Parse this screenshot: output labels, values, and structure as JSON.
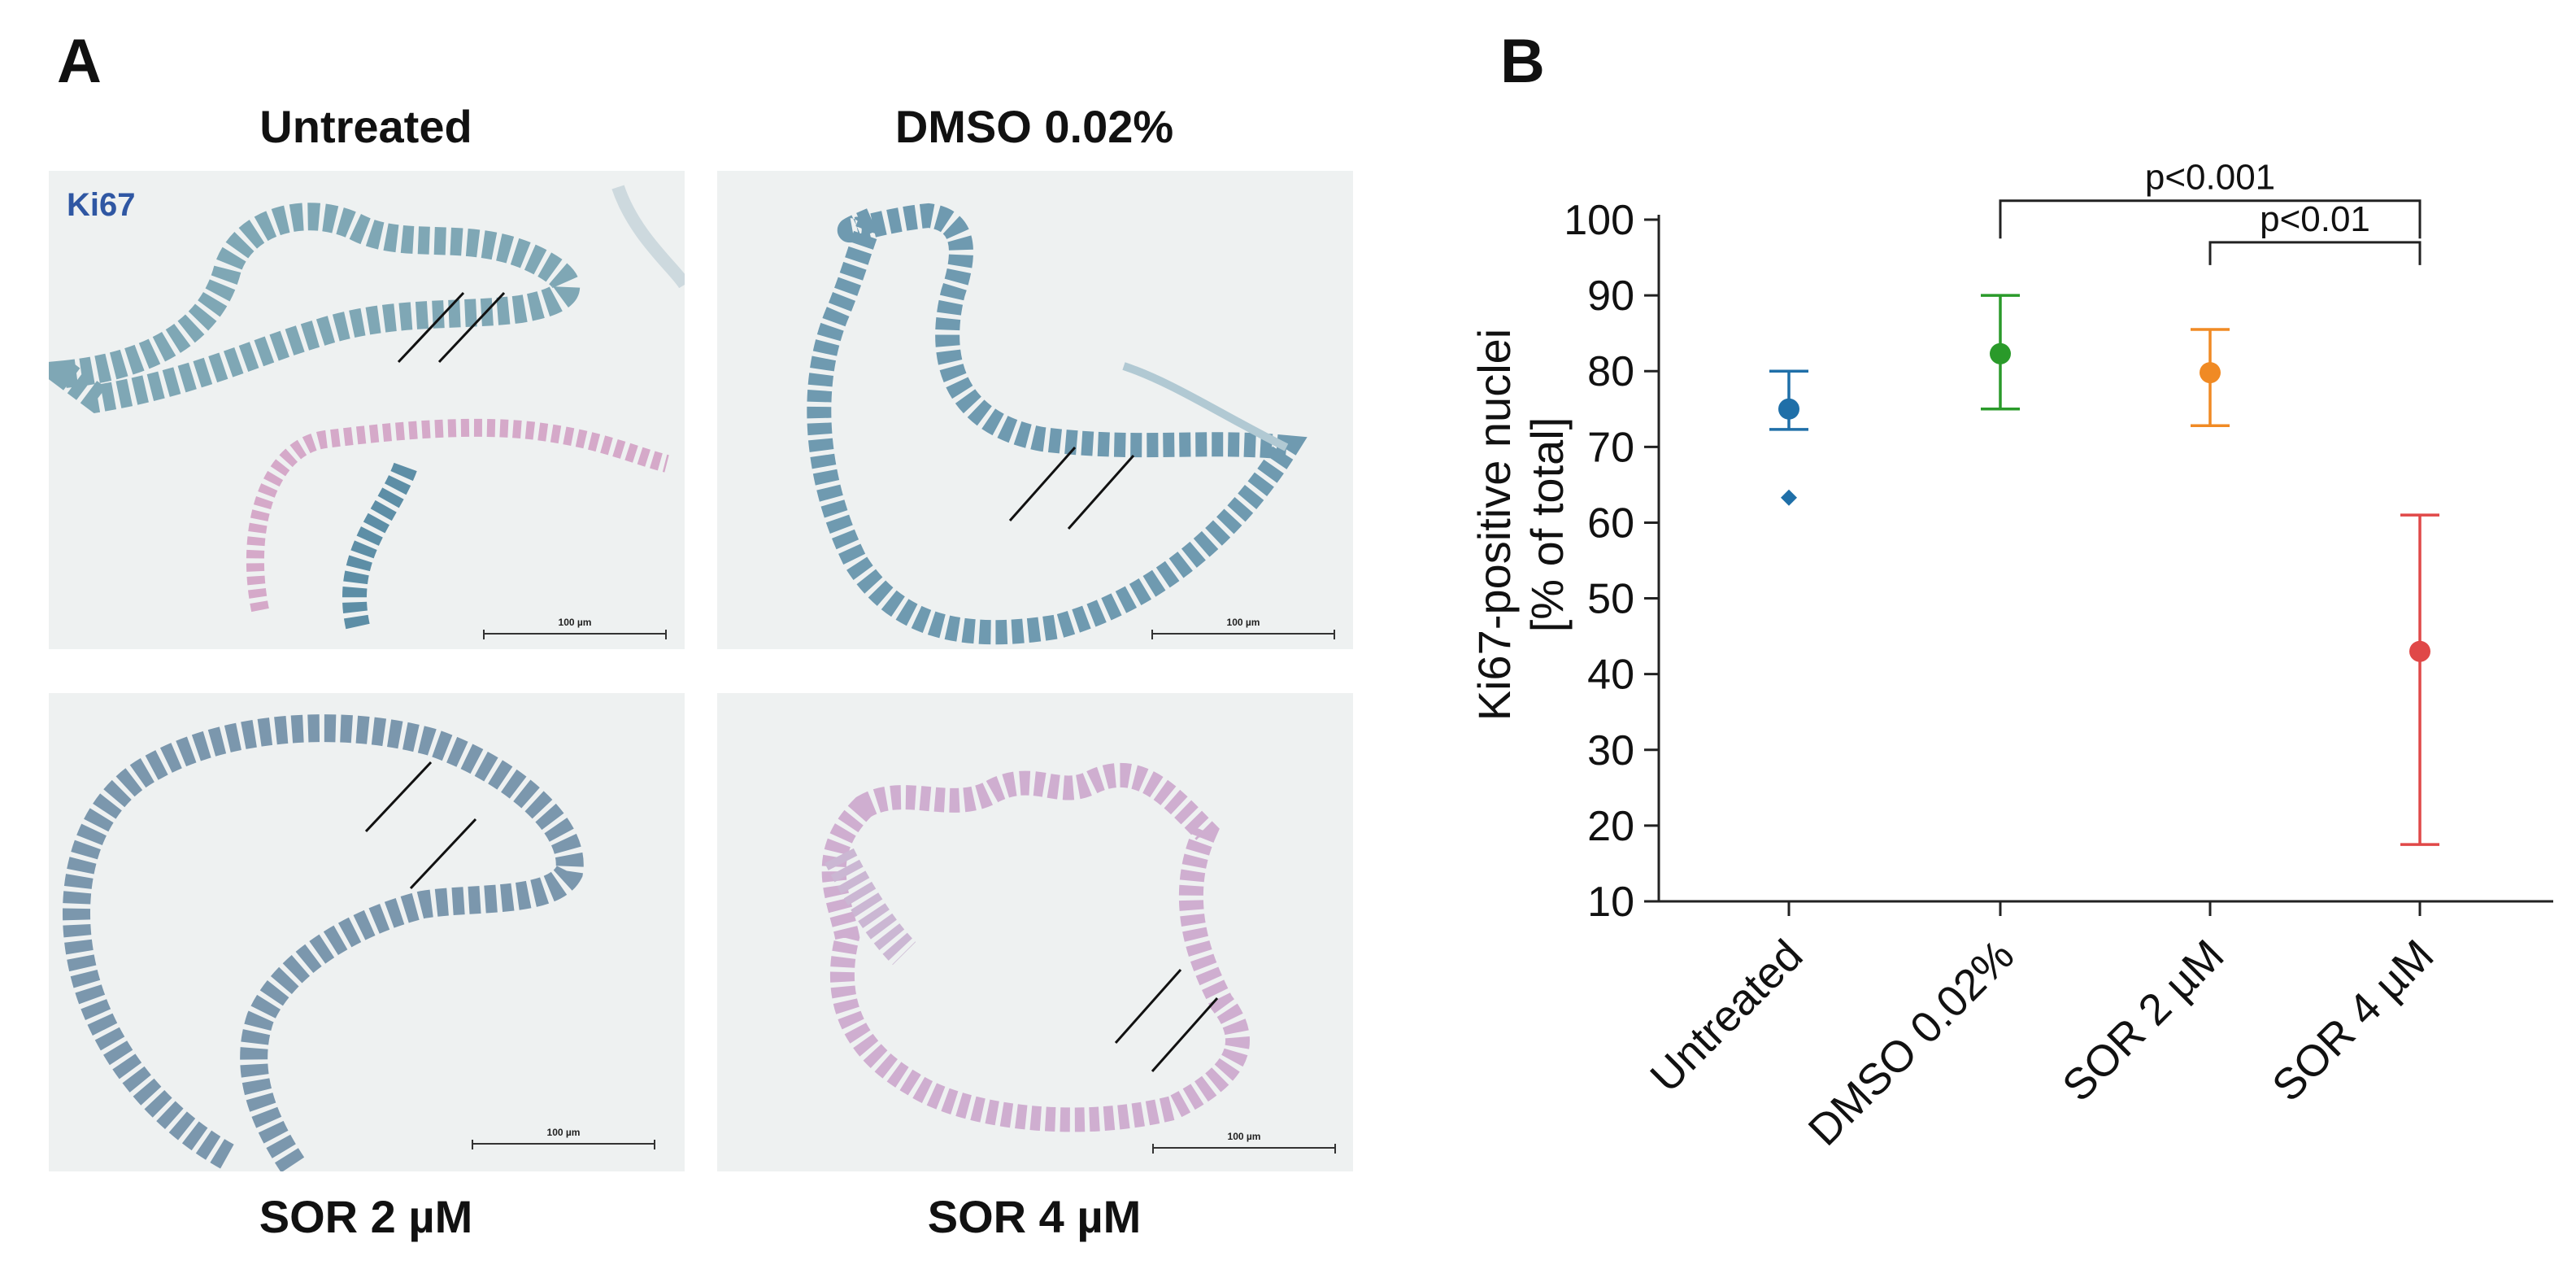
{
  "panel_a": {
    "letter": "A",
    "stain_label": "Ki67",
    "stain_color": "#2f57a3",
    "scale_label": "100 µm",
    "images": [
      {
        "caption": "Untreated"
      },
      {
        "caption": "DMSO 0.02%"
      },
      {
        "caption": "SOR 2 µM"
      },
      {
        "caption": "SOR 4 µM"
      }
    ]
  },
  "panel_b": {
    "letter": "B"
  },
  "chart_data": {
    "type": "scatter",
    "categories": [
      "Untreated",
      "DMSO 0.02%",
      "SOR 2 µM",
      "SOR 4 µM"
    ],
    "ylabel_line1": "Ki67-positive nuclei",
    "ylabel_line2": "[% of total]",
    "ylim": [
      10,
      100
    ],
    "yticks": [
      10,
      20,
      30,
      40,
      50,
      60,
      70,
      80,
      90,
      100
    ],
    "series": [
      {
        "category": "Untreated",
        "mean": 75,
        "low": 72.3,
        "high": 80,
        "color": "#1f6fa8",
        "outlier": 63.3
      },
      {
        "category": "DMSO 0.02%",
        "mean": 82.3,
        "low": 75,
        "high": 90,
        "color": "#2a9a2a"
      },
      {
        "category": "SOR 2 µM",
        "mean": 79.8,
        "low": 72.8,
        "high": 85.5,
        "color": "#f08a24"
      },
      {
        "category": "SOR 4 µM",
        "mean": 43,
        "low": 17.5,
        "high": 61,
        "color": "#e04848"
      }
    ],
    "significance": [
      {
        "label": "p<0.001",
        "from": 1,
        "to": 3,
        "y": 102.5,
        "drop": 97.5
      },
      {
        "label": "p<0.01",
        "from": 2,
        "to": 3,
        "y": 97,
        "drop": 94
      }
    ],
    "grid": false
  }
}
